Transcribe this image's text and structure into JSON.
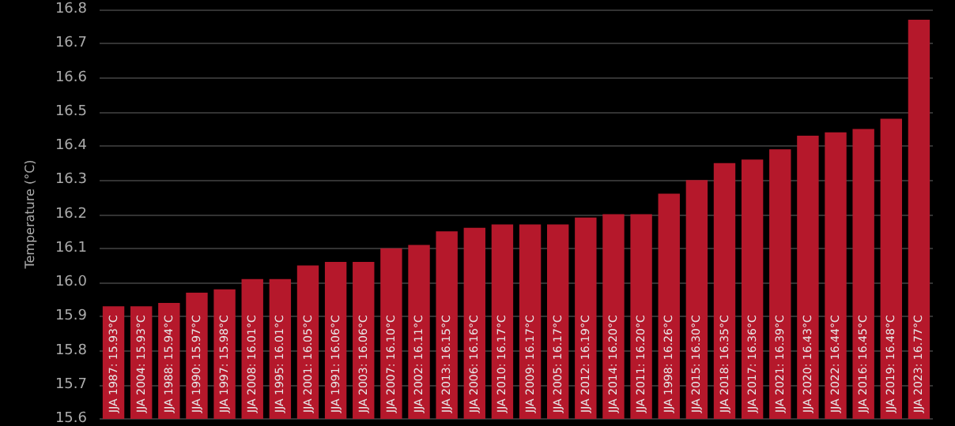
{
  "chart_data": {
    "type": "bar",
    "ylabel": "Temperature (°C)",
    "categories": [
      null,
      null,
      null,
      null,
      null,
      null,
      null,
      null,
      null,
      null,
      null,
      null,
      null,
      null,
      null,
      null,
      null,
      null,
      null,
      null,
      null,
      null,
      null,
      null,
      null,
      null,
      null,
      null,
      null,
      null
    ],
    "values": [
      15.93,
      15.93,
      15.94,
      15.97,
      15.98,
      16.01,
      16.01,
      16.05,
      16.06,
      16.06,
      16.1,
      16.11,
      16.15,
      16.16,
      16.17,
      16.17,
      16.17,
      16.19,
      16.2,
      16.2,
      16.26,
      16.3,
      16.35,
      16.36,
      16.39,
      16.43,
      16.44,
      16.45,
      16.48,
      16.77
    ],
    "value_labels": [
      "JJA 1987: 15.93°C",
      "JJA 2004: 15.93°C",
      "JJA 1988: 15.94°C",
      "JJA 1990: 15.97°C",
      "JJA 1997: 15.98°C",
      "JJA 2008: 16.01°C",
      "JJA 1995: 16.01°C",
      "JJA 2001: 16.05°C",
      "JJA 1991: 16.06°C",
      "JJA 2003: 16.06°C",
      "JJA 2007: 16.10°C",
      "JJA 2002: 16.11°C",
      "JJA 2013: 16.15°C",
      "JJA 2006: 16.16°C",
      "JJA 2010: 16.17°C",
      "JJA 2009: 16.17°C",
      "JJA 2005: 16.17°C",
      "JJA 2012: 16.19°C",
      "JJA 2014: 16.20°C",
      "JJA 2011: 16.20°C",
      "JJA 1998: 16.26°C",
      "JJA 2015: 16.30°C",
      "JJA 2018: 16.35°C",
      "JJA 2017: 16.36°C",
      "JJA 2021: 16.39°C",
      "JJA 2020: 16.43°C",
      "JJA 2022: 16.44°C",
      "JJA 2016: 16.45°C",
      "JJA 2019: 16.48°C",
      "JJA 2023: 16.77°C"
    ],
    "color": "#b5182b",
    "ylim": [
      15.6,
      16.8
    ],
    "yticks": [
      15.6,
      15.7,
      15.8,
      15.9,
      {
        "value": 16,
        "label": "16.0"
      },
      16.1,
      16.2,
      16.3,
      16.4,
      16.5,
      16.6,
      16.7,
      16.8
    ],
    "grid": "y",
    "tick_labels": "y"
  }
}
